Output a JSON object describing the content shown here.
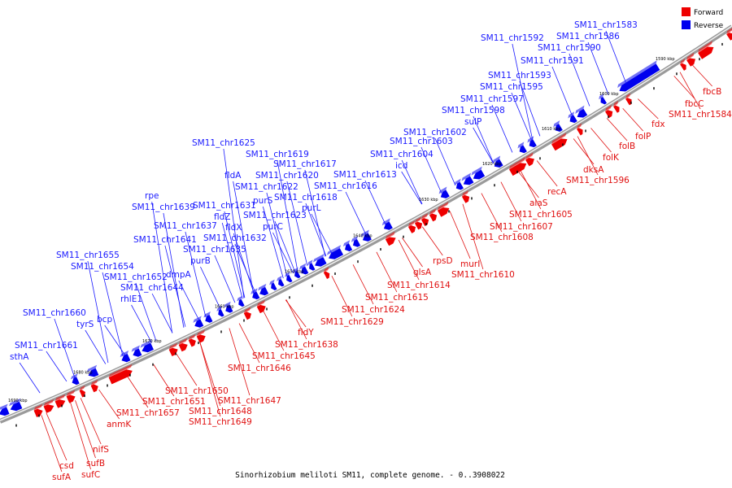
{
  "legend": {
    "forward_label": "Forward",
    "reverse_label": "Reverse",
    "forward_color": "#ee0000",
    "reverse_color": "#0000ee"
  },
  "caption": "Sinorhizobium meliloti SM11, complete genome. - 0..3908022",
  "ticks": [
    "1590 kbp",
    "1600 kbp",
    "1610 kbp",
    "1620 kbp",
    "1630 kbp",
    "1640 kbp",
    "1650 kbp",
    "1660 kbp",
    "1670 kbp",
    "1680 kbp",
    "1690 kbp"
  ],
  "reverse_labels": [
    "SM11_chr1583",
    "SM11_chr1586",
    "SM11_chr1592",
    "SM11_chr1590",
    "SM11_chr1591",
    "SM11_chr1593",
    "SM11_chr1595",
    "SM11_chr1597",
    "SM11_chr1598",
    "sulP",
    "SM11_chr1602",
    "SM11_chr1603",
    "SM11_chr1604",
    "icd",
    "SM11_chr1613",
    "SM11_chr1616",
    "SM11_chr1617",
    "SM11_chr1619",
    "SM11_chr1625",
    "SM11_chr1620",
    "SM11_chr1622",
    "fldA",
    "SM11_chr1618",
    "purL",
    "SM11_chr1623",
    "purS",
    "purC",
    "SM11_chr1631",
    "fldZ",
    "fldX",
    "SM11_chr1632",
    "SM11_chr1635",
    "rpe",
    "SM11_chr1639",
    "SM11_chr1637",
    "SM11_chr1641",
    "purB",
    "dmpA",
    "SM11_chr1655",
    "SM11_chr1654",
    "SM11_chr1652",
    "SM11_chr1644",
    "rhlE1",
    "bcp",
    "SM11_chr1660",
    "tyrS",
    "SM11_chr1661",
    "sthA"
  ],
  "forward_labels": [
    "fbcB",
    "fbcC",
    "SM11_chr1584",
    "fdx",
    "folP",
    "folB",
    "folK",
    "dksA",
    "SM11_chr1596",
    "recA",
    "alaS",
    "SM11_chr1605",
    "SM11_chr1607",
    "SM11_chr1608",
    "murI",
    "SM11_chr1610",
    "rpsD",
    "glsA",
    "SM11_chr1614",
    "SM11_chr1615",
    "SM11_chr1624",
    "SM11_chr1629",
    "fldY",
    "SM11_chr1638",
    "SM11_chr1645",
    "SM11_chr1646",
    "SM11_chr1650",
    "SM11_chr1647",
    "SM11_chr1651",
    "SM11_chr1648",
    "SM11_chr1649",
    "SM11_chr1657",
    "anmK",
    "nifS",
    "sufB",
    "sufC",
    "csd",
    "sufA"
  ]
}
